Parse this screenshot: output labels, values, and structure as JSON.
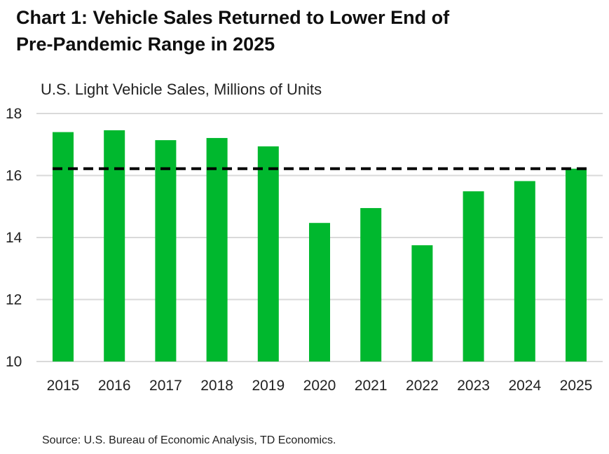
{
  "title_lines": [
    "Chart 1: Vehicle Sales Returned to Lower End of",
    "Pre-Pandemic Range in 2025"
  ],
  "subtitle": "U.S. Light Vehicle Sales, Millions of Units",
  "source": "Source: U.S. Bureau of Economic Analysis, TD Economics.",
  "colors": {
    "bar": "#00b82e",
    "gridline": "#d9d9d9",
    "reference_line": "#000000"
  },
  "chart_data": {
    "type": "bar",
    "categories": [
      "2015",
      "2016",
      "2017",
      "2018",
      "2019",
      "2020",
      "2021",
      "2022",
      "2023",
      "2024",
      "2025"
    ],
    "values": [
      17.4,
      17.46,
      17.14,
      17.21,
      16.94,
      14.47,
      14.95,
      13.75,
      15.49,
      15.82,
      16.22
    ],
    "ylim": [
      10,
      18
    ],
    "yticks": [
      10,
      12,
      14,
      16,
      18
    ],
    "reference_line": {
      "value": 16.22,
      "style": "dashed"
    },
    "grid": true,
    "legend": false
  }
}
